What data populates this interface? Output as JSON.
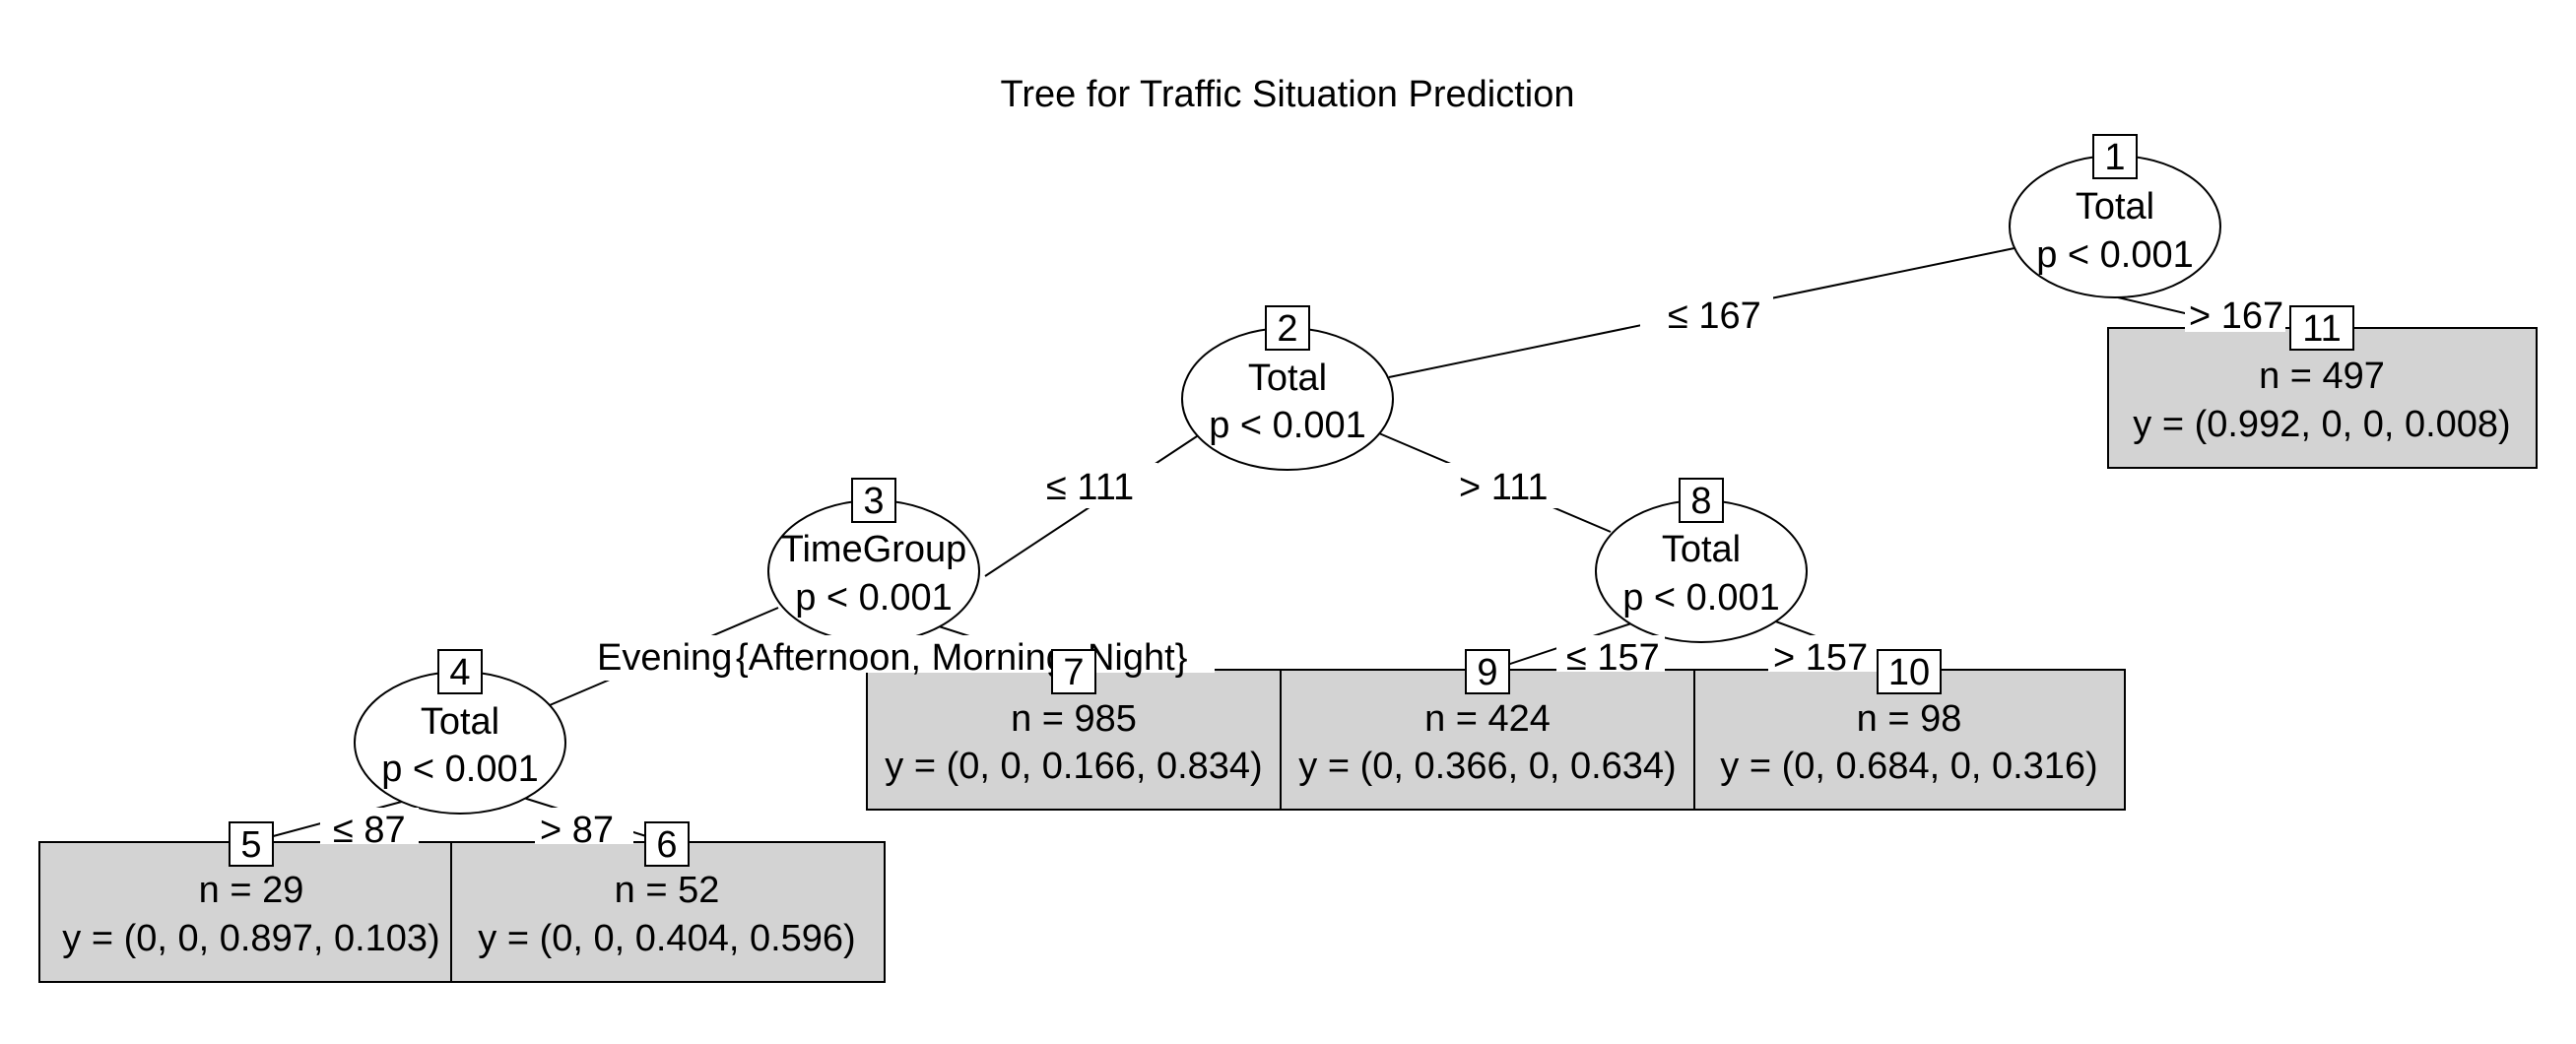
{
  "title": "Tree for Traffic Situation Prediction",
  "inner_nodes": [
    {
      "id": "1",
      "variable": "Total",
      "p": "p < 0.001"
    },
    {
      "id": "2",
      "variable": "Total",
      "p": "p < 0.001"
    },
    {
      "id": "3",
      "variable": "TimeGroup",
      "p": "p < 0.001"
    },
    {
      "id": "4",
      "variable": "Total",
      "p": "p < 0.001"
    },
    {
      "id": "8",
      "variable": "Total",
      "p": "p < 0.001"
    }
  ],
  "leaves": [
    {
      "id": "5",
      "n": "n = 29",
      "y": "y = (0, 0, 0.897, 0.103)"
    },
    {
      "id": "6",
      "n": "n = 52",
      "y": "y = (0, 0, 0.404, 0.596)"
    },
    {
      "id": "7",
      "n": "n = 985",
      "y": "y = (0, 0, 0.166, 0.834)"
    },
    {
      "id": "9",
      "n": "n = 424",
      "y": "y = (0, 0.366, 0, 0.634)"
    },
    {
      "id": "10",
      "n": "n = 98",
      "y": "y = (0, 0.684, 0, 0.316)"
    },
    {
      "id": "11",
      "n": "n = 497",
      "y": "y = (0.992, 0, 0, 0.008)"
    }
  ],
  "edge_labels": [
    {
      "from": "1",
      "to": "2",
      "label": "≤ 167"
    },
    {
      "from": "1",
      "to": "11",
      "label": "> 167"
    },
    {
      "from": "2",
      "to": "3",
      "label": "≤ 111"
    },
    {
      "from": "2",
      "to": "8",
      "label": "> 111"
    },
    {
      "from": "3",
      "to": "4",
      "label": "Evening"
    },
    {
      "from": "3",
      "to": "7",
      "label": "{Afternoon, Morning, Night}"
    },
    {
      "from": "4",
      "to": "5",
      "label": "≤ 87"
    },
    {
      "from": "4",
      "to": "6",
      "label": "> 87"
    },
    {
      "from": "8",
      "to": "9",
      "label": "≤ 157"
    },
    {
      "from": "8",
      "to": "10",
      "label": "> 157"
    }
  ]
}
